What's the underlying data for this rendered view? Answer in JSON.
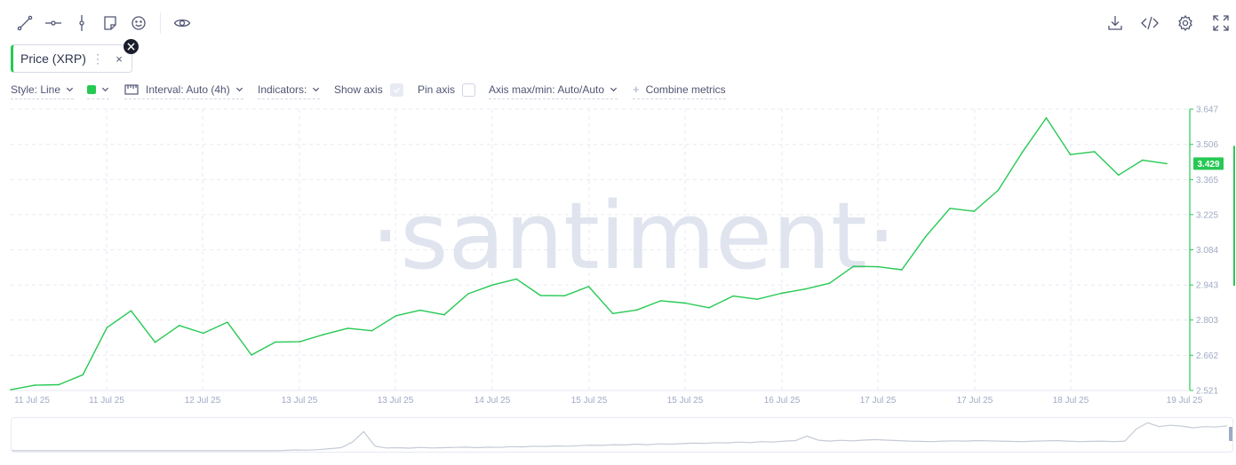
{
  "toolbar": {
    "left_tools": [
      "trend-line-icon",
      "horizontal-ray-icon",
      "vertical-line-icon",
      "note-icon",
      "emoji-icon",
      "eye-icon"
    ],
    "right_tools": [
      "download-icon",
      "embed-code-icon",
      "settings-icon",
      "fullscreen-icon"
    ]
  },
  "metric_chip": {
    "label": "Price (XRP)",
    "more": "⋮",
    "close": "×"
  },
  "settings": {
    "style": "Style: Line",
    "interval": "Interval: Auto (4h)",
    "indicators": "Indicators:",
    "show_axis": "Show axis",
    "show_axis_checked": true,
    "pin_axis": "Pin axis",
    "pin_axis_checked": false,
    "axis_maxmin": "Axis max/min: Auto/Auto",
    "combine": "Combine metrics",
    "line_color": "#26c953"
  },
  "watermark": "·santiment·",
  "chart_data": {
    "type": "line",
    "title": "",
    "series": [
      {
        "name": "Price (XRP)",
        "color": "#26c953",
        "values": [
          2.524,
          2.542,
          2.544,
          2.584,
          2.773,
          2.84,
          2.714,
          2.781,
          2.75,
          2.794,
          2.663,
          2.715,
          2.716,
          2.745,
          2.77,
          2.76,
          2.82,
          2.842,
          2.824,
          2.908,
          2.943,
          2.967,
          2.901,
          2.9,
          2.937,
          2.829,
          2.843,
          2.88,
          2.871,
          2.852,
          2.899,
          2.886,
          2.91,
          2.927,
          2.95,
          3.018,
          3.016,
          3.004,
          3.138,
          3.25,
          3.238,
          3.322,
          3.474,
          3.612,
          3.465,
          3.477,
          3.383,
          3.443,
          3.429
        ]
      }
    ],
    "x_tick_labels": [
      "11 Jul 25",
      "11 Jul 25",
      "12 Jul 25",
      "13 Jul 25",
      "13 Jul 25",
      "14 Jul 25",
      "15 Jul 25",
      "15 Jul 25",
      "16 Jul 25",
      "17 Jul 25",
      "17 Jul 25",
      "18 Jul 25",
      "19 Jul 25"
    ],
    "y_ticks": [
      2.521,
      2.662,
      2.803,
      2.943,
      3.084,
      3.225,
      3.365,
      3.506,
      3.647
    ],
    "ylim": [
      2.521,
      3.647
    ],
    "current_value": 3.429,
    "grid": true,
    "axis_color": "#26c953"
  },
  "navigator": {
    "values": [
      2.44,
      2.44,
      2.44,
      2.44,
      2.44,
      2.44,
      2.44,
      2.44,
      2.44,
      2.44,
      2.44,
      2.44,
      2.44,
      2.44,
      2.44,
      2.44,
      2.44,
      2.44,
      2.44,
      2.44,
      2.44,
      2.44,
      2.44,
      2.44,
      2.45,
      2.47,
      2.46,
      2.48,
      2.52,
      2.56,
      2.78,
      3.2,
      2.62,
      2.55,
      2.56,
      2.54,
      2.57,
      2.55,
      2.56,
      2.57,
      2.58,
      2.56,
      2.58,
      2.57,
      2.6,
      2.59,
      2.62,
      2.61,
      2.63,
      2.62,
      2.64,
      2.66,
      2.65,
      2.68,
      2.67,
      2.7,
      2.68,
      2.71,
      2.7,
      2.72,
      2.74,
      2.73,
      2.76,
      2.75,
      2.78,
      2.76,
      2.8,
      2.78,
      2.82,
      2.84,
      3.02,
      2.86,
      2.82,
      2.85,
      2.83,
      2.86,
      2.88,
      2.86,
      2.84,
      2.82,
      2.81,
      2.8,
      2.82,
      2.83,
      2.82,
      2.84,
      2.83,
      2.82,
      2.81,
      2.8,
      2.82,
      2.83,
      2.84,
      2.82,
      2.8,
      2.81,
      2.82,
      2.8,
      2.82,
      3.3,
      3.55,
      3.4,
      3.45,
      3.42,
      3.35,
      3.4,
      3.38,
      3.43
    ],
    "line_color": "#c5cad6"
  }
}
